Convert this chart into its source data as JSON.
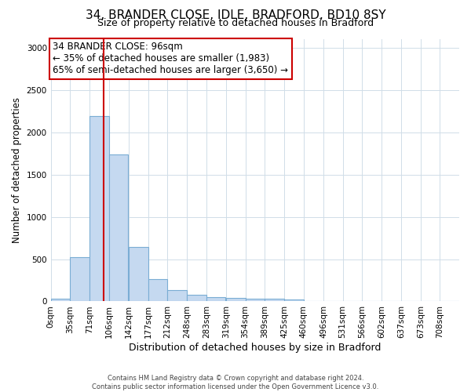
{
  "title1": "34, BRANDER CLOSE, IDLE, BRADFORD, BD10 8SY",
  "title2": "Size of property relative to detached houses in Bradford",
  "xlabel": "Distribution of detached houses by size in Bradford",
  "ylabel": "Number of detached properties",
  "bin_labels": [
    "0sqm",
    "35sqm",
    "71sqm",
    "106sqm",
    "142sqm",
    "177sqm",
    "212sqm",
    "248sqm",
    "283sqm",
    "319sqm",
    "354sqm",
    "389sqm",
    "425sqm",
    "460sqm",
    "496sqm",
    "531sqm",
    "566sqm",
    "602sqm",
    "637sqm",
    "673sqm",
    "708sqm"
  ],
  "bin_edges": [
    0,
    35,
    71,
    106,
    142,
    177,
    212,
    248,
    283,
    319,
    354,
    389,
    425,
    460,
    496,
    531,
    566,
    602,
    637,
    673,
    708
  ],
  "bar_heights": [
    30,
    520,
    2190,
    1740,
    640,
    260,
    135,
    80,
    50,
    40,
    35,
    30,
    20,
    5,
    5,
    0,
    0,
    0,
    0,
    0,
    0
  ],
  "bar_color": "#c5d9f0",
  "bar_edgecolor": "#7aadd4",
  "bar_linewidth": 0.8,
  "vline_x": 96,
  "vline_color": "#cc0000",
  "vline_linewidth": 1.5,
  "ylim": [
    0,
    3100
  ],
  "yticks": [
    0,
    500,
    1000,
    1500,
    2000,
    2500,
    3000
  ],
  "annotation_title": "34 BRANDER CLOSE: 96sqm",
  "annotation_line1": "← 35% of detached houses are smaller (1,983)",
  "annotation_line2": "65% of semi-detached houses are larger (3,650) →",
  "annotation_box_facecolor": "#ffffff",
  "annotation_box_edgecolor": "#cc0000",
  "footer_line1": "Contains HM Land Registry data © Crown copyright and database right 2024.",
  "footer_line2": "Contains public sector information licensed under the Open Government Licence v3.0.",
  "background_color": "#ffffff",
  "grid_color": "#d0dde8",
  "title1_fontsize": 11,
  "title2_fontsize": 9,
  "xlabel_fontsize": 9,
  "ylabel_fontsize": 8.5,
  "tick_fontsize": 7.5,
  "annotation_fontsize": 8.5
}
